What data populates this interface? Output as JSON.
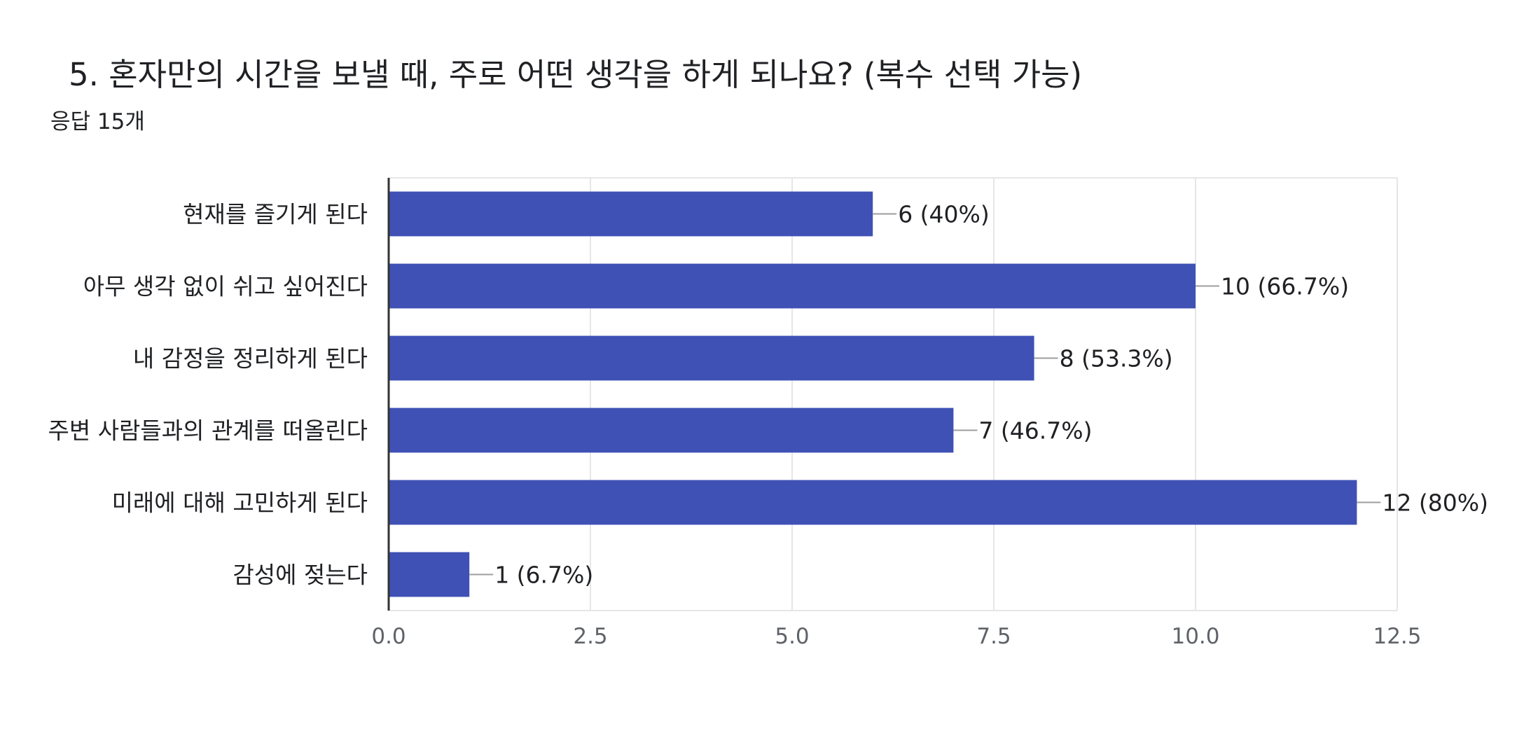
{
  "question": {
    "title": "5. 혼자만의 시간을 보낼 때, 주로 어떤 생각을 하게 되나요? (복수 선택 가능)",
    "response_count": "응답 15개"
  },
  "colors": {
    "bar": "#3f51b5",
    "grid": "#e6e6e6",
    "axis": "#333333",
    "leader": "#9e9e9e"
  },
  "chart_data": {
    "type": "bar",
    "orientation": "horizontal",
    "title": "5. 혼자만의 시간을 보낼 때, 주로 어떤 생각을 하게 되나요? (복수 선택 가능)",
    "subtitle": "응답 15개",
    "categories": [
      "현재를 즐기게 된다",
      "아무 생각 없이 쉬고 싶어진다",
      "내 감정을 정리하게 된다",
      "주변 사람들과의 관계를 떠올린다",
      "미래에 대해 고민하게 된다",
      "감성에 젖는다"
    ],
    "values": [
      6,
      10,
      8,
      7,
      12,
      1
    ],
    "data_labels": [
      "6 (40%)",
      "10 (66.7%)",
      "8 (53.3%)",
      "7 (46.7%)",
      "12 (80%)",
      "1 (6.7%)"
    ],
    "xlim": [
      0,
      12.5
    ],
    "xticks": [
      0,
      2.5,
      5,
      7.5,
      10,
      12.5
    ],
    "xtick_labels": [
      "0.0",
      "2.5",
      "5.0",
      "7.5",
      "10.0",
      "12.5"
    ],
    "xlabel": "",
    "ylabel": "",
    "grid": true,
    "legend": "none"
  }
}
